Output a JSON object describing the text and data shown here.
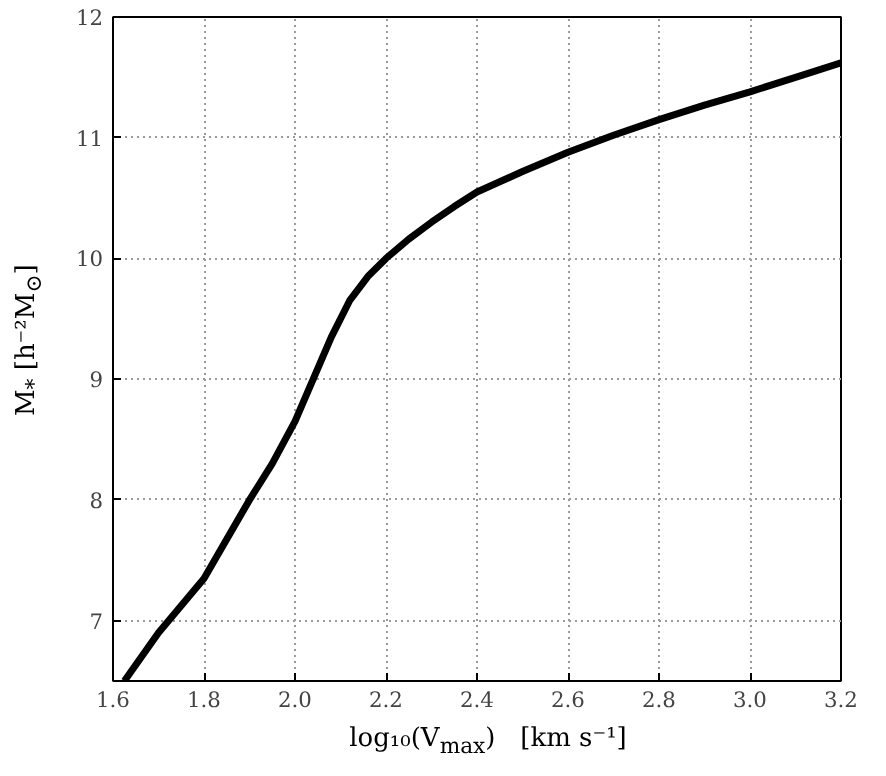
{
  "chart_data": {
    "type": "line",
    "xlabel": "log₁₀(V$_{max}$)   [km s⁻¹]",
    "ylabel": "M$_{*}$ [h⁻²M$_{⊙}$]",
    "x": [
      1.625,
      1.7,
      1.8,
      1.9,
      1.95,
      2.0,
      2.04,
      2.08,
      2.12,
      2.16,
      2.2,
      2.25,
      2.3,
      2.35,
      2.4,
      2.5,
      2.6,
      2.7,
      2.8,
      2.9,
      3.0,
      3.1,
      3.2
    ],
    "series": [
      {
        "color": "#000000",
        "values": [
          6.5,
          6.9,
          7.35,
          8.0,
          8.3,
          8.65,
          9.0,
          9.35,
          9.65,
          9.85,
          10.0,
          10.16,
          10.3,
          10.43,
          10.55,
          10.72,
          10.88,
          11.02,
          11.15,
          11.27,
          11.38,
          11.5,
          11.62
        ]
      }
    ],
    "xlim": [
      1.6,
      3.2
    ],
    "ylim": [
      6.5,
      12
    ],
    "xticks": [
      {
        "value": 1.6,
        "label": "1.6"
      },
      {
        "value": 1.8,
        "label": "1.8"
      },
      {
        "value": 2.0,
        "label": "2.0"
      },
      {
        "value": 2.2,
        "label": "2.2"
      },
      {
        "value": 2.4,
        "label": "2.4"
      },
      {
        "value": 2.6,
        "label": "2.6"
      },
      {
        "value": 2.8,
        "label": "2.8"
      },
      {
        "value": 3.0,
        "label": "3.0"
      },
      {
        "value": 3.2,
        "label": "3.2"
      }
    ],
    "yticks": [
      7,
      8,
      9,
      10,
      11,
      12
    ],
    "grid": true,
    "line_style": "solid"
  }
}
